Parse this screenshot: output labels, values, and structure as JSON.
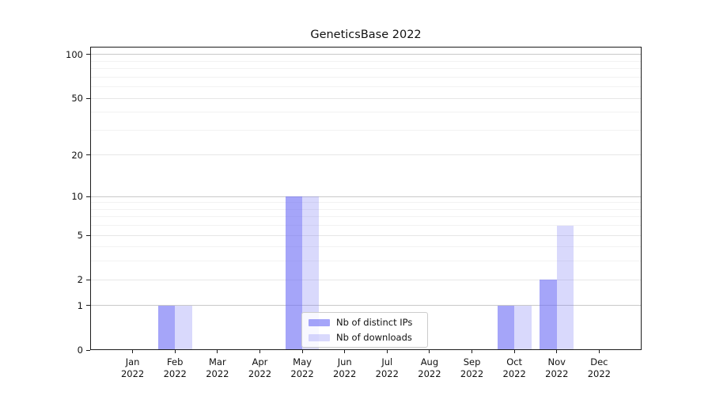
{
  "chart_data": {
    "type": "bar",
    "title": "GeneticsBase 2022",
    "categories": [
      "Jan",
      "Feb",
      "Mar",
      "Apr",
      "May",
      "Jun",
      "Jul",
      "Aug",
      "Sep",
      "Oct",
      "Nov",
      "Dec"
    ],
    "tick_year": "2022",
    "series": [
      {
        "name": "Nb of distinct IPs",
        "color": "rgba(110,110,245,0.62)",
        "values": [
          0,
          1,
          0,
          0,
          10,
          0,
          0,
          0,
          0,
          1,
          2,
          0
        ]
      },
      {
        "name": "Nb of downloads",
        "color": "rgba(110,110,245,0.26)",
        "values": [
          0,
          1,
          0,
          0,
          10,
          0,
          0,
          0,
          0,
          1,
          6,
          0
        ]
      }
    ],
    "xlabel": "",
    "ylabel": "",
    "yscale": "symlog",
    "ylim": [
      0,
      113
    ],
    "yticks": [
      0,
      1,
      2,
      5,
      10,
      20,
      50,
      100
    ],
    "gridlines": {
      "major": [
        1,
        10,
        100
      ],
      "medium": [
        2,
        5,
        20,
        50
      ],
      "minor": [
        3,
        4,
        6,
        7,
        8,
        9,
        30,
        40,
        60,
        70,
        80,
        90
      ],
      "major_color": "#c9c9c9",
      "medium_color": "#e7e7e7",
      "minor_color": "#f2f2f2"
    },
    "legend": {
      "position": "lower center"
    },
    "text_color": "#111111",
    "spine_color": "#1c1c1c"
  }
}
